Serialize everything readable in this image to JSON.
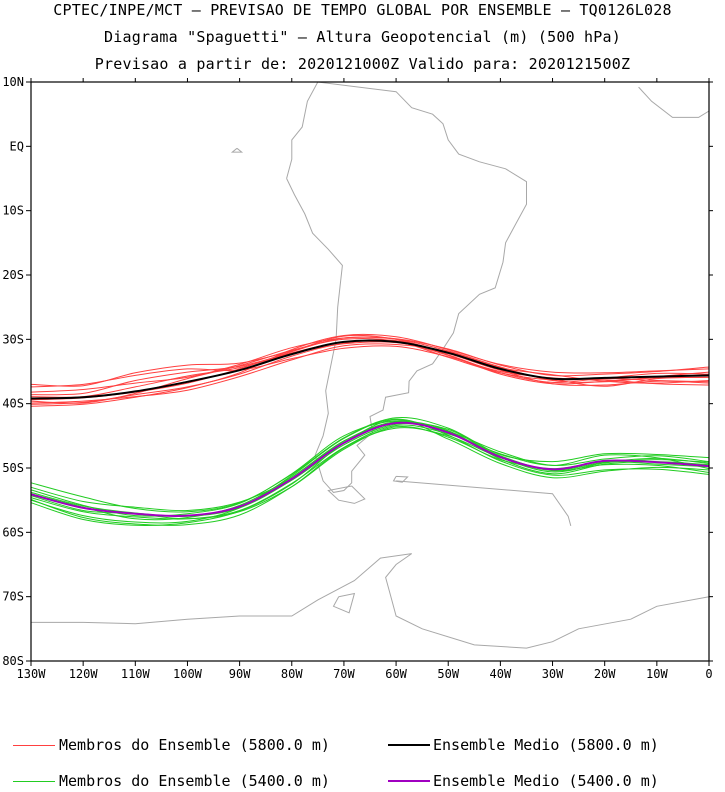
{
  "titles": {
    "line1": "CPTEC/INPE/MCT – PREVISAO DE TEMPO GLOBAL POR ENSEMBLE – TQ0126L028",
    "line2": "Diagrama \"Spaguetti\" – Altura Geopotencial (m) (500 hPa)",
    "line3": "Previsao a partir de: 2020121000Z   Valido para: 2020121500Z"
  },
  "legend": {
    "members_5800": "Membros do Ensemble (5800.0 m)",
    "mean_5800": "Ensemble Medio (5800.0 m)",
    "members_5400": "Membros do Ensemble (5400.0 m)",
    "mean_5400": "Ensemble Medio (5400.0 m)"
  },
  "colors": {
    "members_5800": "#ff4040",
    "mean_5800": "#000000",
    "members_5400": "#22cc22",
    "mean_5400": "#a000c0",
    "coastline": "#a8a8a8"
  },
  "chart_data": {
    "type": "line",
    "projection": "lon-lat map",
    "xlim": [
      -130,
      0
    ],
    "ylim": [
      -80,
      10
    ],
    "x_ticks": [
      {
        "value": -130,
        "label": "130W"
      },
      {
        "value": -120,
        "label": "120W"
      },
      {
        "value": -110,
        "label": "110W"
      },
      {
        "value": -100,
        "label": "100W"
      },
      {
        "value": -90,
        "label": "90W"
      },
      {
        "value": -80,
        "label": "80W"
      },
      {
        "value": -70,
        "label": "70W"
      },
      {
        "value": -60,
        "label": "60W"
      },
      {
        "value": -50,
        "label": "50W"
      },
      {
        "value": -40,
        "label": "40W"
      },
      {
        "value": -30,
        "label": "30W"
      },
      {
        "value": -20,
        "label": "20W"
      },
      {
        "value": -10,
        "label": "10W"
      },
      {
        "value": 0,
        "label": "0"
      }
    ],
    "y_ticks": [
      {
        "value": 10,
        "label": "10N"
      },
      {
        "value": 0,
        "label": "EQ"
      },
      {
        "value": -10,
        "label": "10S"
      },
      {
        "value": -20,
        "label": "20S"
      },
      {
        "value": -30,
        "label": "30S"
      },
      {
        "value": -40,
        "label": "40S"
      },
      {
        "value": -50,
        "label": "50S"
      },
      {
        "value": -60,
        "label": "60S"
      },
      {
        "value": -70,
        "label": "70S"
      },
      {
        "value": -80,
        "label": "80S"
      }
    ],
    "grid": false,
    "legend_position": "bottom",
    "lon": [
      -130,
      -120,
      -110,
      -100,
      -90,
      -80,
      -70,
      -60,
      -50,
      -40,
      -30,
      -20,
      -10,
      0
    ],
    "series": [
      {
        "name": "Ensemble Medio (5800.0 m)",
        "group": "5800_mean",
        "lat": [
          -39.2,
          -39.0,
          -38.1,
          -36.6,
          -34.8,
          -32.3,
          -30.4,
          -30.4,
          -32.1,
          -34.6,
          -36.1,
          -36.0,
          -35.8,
          -35.6
        ]
      },
      {
        "name": "Ensemble Medio (5400.0 m)",
        "group": "5400_mean",
        "lat": [
          -54.1,
          -56.2,
          -57.1,
          -57.4,
          -56.0,
          -51.7,
          -46.1,
          -43.0,
          -44.5,
          -48.3,
          -50.2,
          -48.9,
          -49.1,
          -49.7
        ]
      }
    ],
    "members_5800": [
      [
        -38.6,
        -38.4,
        -36.4,
        -35.1,
        -34.2,
        -32.1,
        -30.4,
        -30.4,
        -32.5,
        -35.4,
        -36.9,
        -36.5,
        -36.0,
        -35.9
      ],
      [
        -39.4,
        -39.1,
        -38.2,
        -36.8,
        -34.6,
        -31.9,
        -29.8,
        -30.0,
        -31.8,
        -34.3,
        -36.4,
        -36.6,
        -35.8,
        -35.1
      ],
      [
        -40.1,
        -39.8,
        -38.6,
        -37.4,
        -35.4,
        -32.6,
        -30.6,
        -30.2,
        -32.2,
        -34.8,
        -36.2,
        -37.3,
        -36.1,
        -35.9
      ],
      [
        -37.0,
        -37.2,
        -35.2,
        -34.0,
        -33.7,
        -31.8,
        -29.5,
        -30.0,
        -32.4,
        -35.2,
        -36.7,
        -36.1,
        -36.4,
        -36.6
      ],
      [
        -39.9,
        -39.6,
        -38.9,
        -37.9,
        -35.8,
        -33.2,
        -31.0,
        -30.8,
        -31.9,
        -34.4,
        -35.5,
        -36.5,
        -36.8,
        -36.4
      ],
      [
        -38.2,
        -37.8,
        -36.8,
        -35.9,
        -33.9,
        -31.3,
        -29.8,
        -29.9,
        -31.5,
        -34.0,
        -35.6,
        -35.4,
        -35.0,
        -34.3
      ],
      [
        -39.6,
        -39.9,
        -38.4,
        -36.1,
        -34.1,
        -31.7,
        -30.0,
        -30.3,
        -32.8,
        -35.2,
        -36.3,
        -36.0,
        -35.3,
        -35.4
      ],
      [
        -38.9,
        -38.9,
        -37.4,
        -35.7,
        -34.4,
        -32.2,
        -30.7,
        -30.5,
        -32.1,
        -34.8,
        -36.9,
        -37.1,
        -36.5,
        -36.8
      ],
      [
        -40.4,
        -40.1,
        -39.0,
        -37.5,
        -35.2,
        -31.6,
        -29.4,
        -29.6,
        -31.6,
        -33.9,
        -35.1,
        -35.2,
        -34.9,
        -34.6
      ],
      [
        -37.4,
        -37.0,
        -35.6,
        -34.6,
        -34.8,
        -33.0,
        -31.4,
        -31.1,
        -32.7,
        -35.0,
        -36.0,
        -36.3,
        -36.9,
        -37.1
      ]
    ],
    "members_5400": [
      [
        -53.0,
        -55.2,
        -56.1,
        -56.6,
        -55.3,
        -51.6,
        -45.8,
        -42.8,
        -44.2,
        -48.6,
        -50.9,
        -49.4,
        -49.0,
        -49.5
      ],
      [
        -54.6,
        -56.8,
        -57.6,
        -57.9,
        -56.6,
        -52.4,
        -46.8,
        -43.4,
        -44.7,
        -47.8,
        -49.6,
        -48.0,
        -48.4,
        -50.1
      ],
      [
        -55.0,
        -57.4,
        -58.4,
        -58.3,
        -56.2,
        -51.2,
        -45.4,
        -42.4,
        -44.9,
        -48.9,
        -51.1,
        -50.3,
        -50.2,
        -51.0
      ],
      [
        -52.3,
        -54.5,
        -56.3,
        -56.8,
        -55.4,
        -51.0,
        -45.3,
        -42.2,
        -43.8,
        -47.9,
        -49.0,
        -47.8,
        -47.9,
        -48.4
      ],
      [
        -54.9,
        -57.7,
        -58.7,
        -58.8,
        -57.3,
        -52.9,
        -46.9,
        -43.8,
        -45.0,
        -48.4,
        -50.4,
        -49.5,
        -49.6,
        -50.7
      ],
      [
        -53.8,
        -55.9,
        -57.0,
        -57.5,
        -56.2,
        -51.9,
        -46.4,
        -43.2,
        -44.0,
        -48.3,
        -50.6,
        -49.2,
        -48.7,
        -49.1
      ],
      [
        -55.4,
        -58.0,
        -58.9,
        -58.5,
        -56.7,
        -52.5,
        -46.1,
        -42.5,
        -45.5,
        -49.3,
        -51.5,
        -50.5,
        -49.9,
        -50.3
      ],
      [
        -53.4,
        -55.8,
        -57.4,
        -57.1,
        -55.5,
        -50.9,
        -45.0,
        -42.7,
        -44.3,
        -47.5,
        -49.6,
        -48.6,
        -48.1,
        -49.0
      ],
      [
        -54.3,
        -56.6,
        -57.1,
        -57.9,
        -56.8,
        -52.9,
        -47.1,
        -43.6,
        -45.2,
        -48.7,
        -50.1,
        -49.0,
        -49.4,
        -49.8
      ],
      [
        -54.0,
        -56.1,
        -57.9,
        -57.7,
        -55.8,
        -51.4,
        -45.8,
        -43.0,
        -44.4,
        -48.1,
        -50.3,
        -49.1,
        -48.5,
        -49.3
      ]
    ]
  }
}
